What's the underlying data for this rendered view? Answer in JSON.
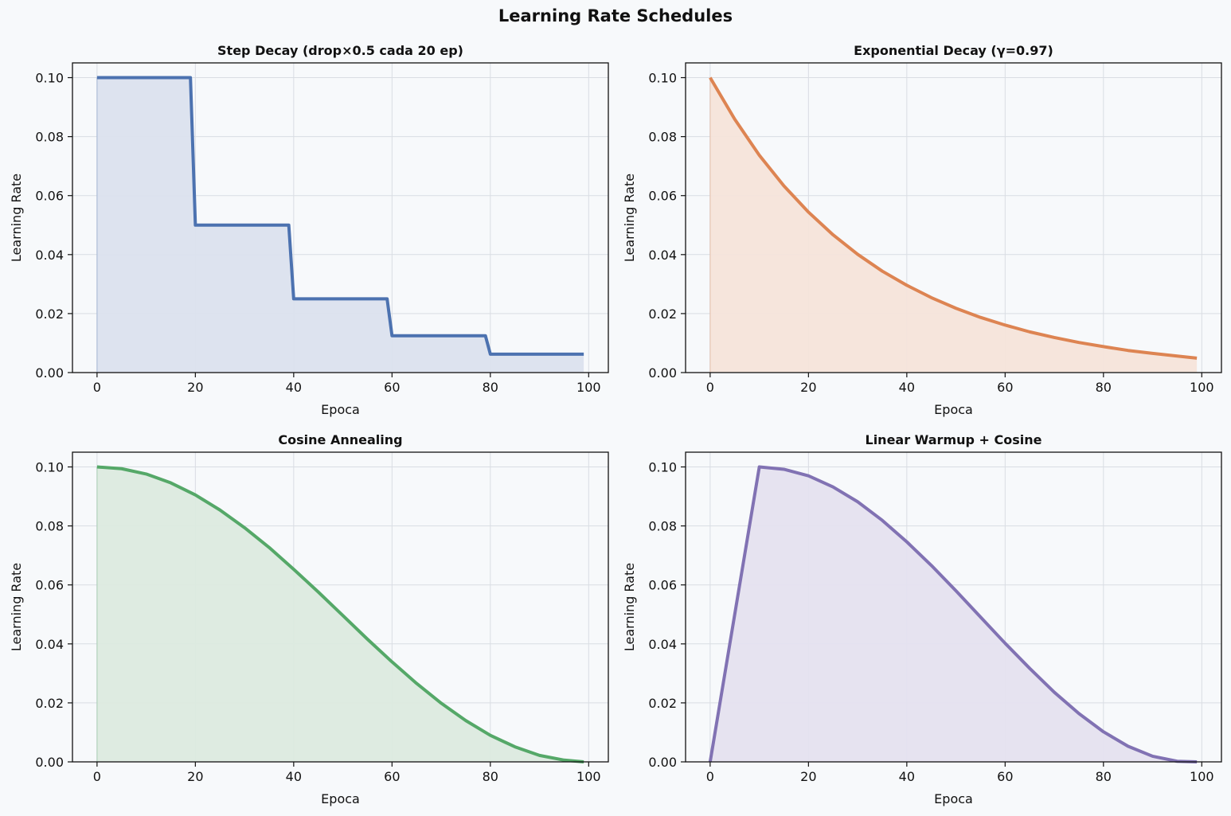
{
  "figure": {
    "title": "Learning Rate Schedules"
  },
  "chart_data": [
    {
      "type": "area",
      "title": "Step Decay (drop×0.5 cada 20 ep)",
      "xlabel": "Epoca",
      "ylabel": "Learning Rate",
      "xlim": [
        -5,
        104
      ],
      "ylim": [
        0,
        0.105
      ],
      "xticks": [
        "0",
        "20",
        "40",
        "60",
        "80",
        "100"
      ],
      "yticks": [
        "0.00",
        "0.02",
        "0.04",
        "0.06",
        "0.08",
        "0.10"
      ],
      "grid": true,
      "color": "#4c72b0",
      "fill_color": "#dbe2ee",
      "series": [
        {
          "x": [
            0,
            19,
            20,
            39,
            40,
            59,
            60,
            79,
            80,
            99
          ],
          "y": [
            0.1,
            0.1,
            0.05,
            0.05,
            0.025,
            0.025,
            0.0125,
            0.0125,
            0.00625,
            0.00625
          ]
        }
      ]
    },
    {
      "type": "area",
      "title": "Exponential Decay (γ=0.97)",
      "xlabel": "Epoca",
      "ylabel": "Learning Rate",
      "xlim": [
        -5,
        104
      ],
      "ylim": [
        0,
        0.105
      ],
      "xticks": [
        "0",
        "20",
        "40",
        "60",
        "80",
        "100"
      ],
      "yticks": [
        "0.00",
        "0.02",
        "0.04",
        "0.06",
        "0.08",
        "0.10"
      ],
      "grid": true,
      "color": "#dd8452",
      "fill_color": "#f5e4da",
      "series": [
        {
          "x": [
            0,
            5,
            10,
            15,
            20,
            25,
            30,
            35,
            40,
            45,
            50,
            55,
            60,
            65,
            70,
            75,
            80,
            85,
            90,
            95,
            99
          ],
          "y": [
            0.1,
            0.0859,
            0.0737,
            0.0633,
            0.0544,
            0.0467,
            0.0401,
            0.0344,
            0.0296,
            0.0254,
            0.0218,
            0.0187,
            0.0161,
            0.0138,
            0.0119,
            0.0102,
            0.0088,
            0.0075,
            0.0065,
            0.0056,
            0.0049
          ]
        }
      ]
    },
    {
      "type": "area",
      "title": "Cosine Annealing",
      "xlabel": "Epoca",
      "ylabel": "Learning Rate",
      "xlim": [
        -5,
        104
      ],
      "ylim": [
        0,
        0.105
      ],
      "xticks": [
        "0",
        "20",
        "40",
        "60",
        "80",
        "100"
      ],
      "yticks": [
        "0.00",
        "0.02",
        "0.04",
        "0.06",
        "0.08",
        "0.10"
      ],
      "grid": true,
      "color": "#55a868",
      "fill_color": "#dceadf",
      "series": [
        {
          "x": [
            0,
            5,
            10,
            15,
            20,
            25,
            30,
            35,
            40,
            45,
            50,
            55,
            60,
            65,
            70,
            75,
            80,
            85,
            90,
            95,
            99
          ],
          "y": [
            0.1,
            0.0994,
            0.0976,
            0.0946,
            0.0905,
            0.0854,
            0.0794,
            0.0727,
            0.0653,
            0.0576,
            0.0496,
            0.0416,
            0.0339,
            0.0266,
            0.0199,
            0.014,
            0.009,
            0.0051,
            0.0022,
            0.0006,
            0.0
          ]
        }
      ]
    },
    {
      "type": "area",
      "title": "Linear Warmup + Cosine",
      "xlabel": "Epoca",
      "ylabel": "Learning Rate",
      "xlim": [
        -5,
        104
      ],
      "ylim": [
        0,
        0.105
      ],
      "xticks": [
        "0",
        "20",
        "40",
        "60",
        "80",
        "100"
      ],
      "yticks": [
        "0.00",
        "0.02",
        "0.04",
        "0.06",
        "0.08",
        "0.10"
      ],
      "grid": true,
      "color": "#8172b3",
      "fill_color": "#e5e2ef",
      "series": [
        {
          "x": [
            0,
            10,
            15,
            20,
            25,
            30,
            35,
            40,
            45,
            50,
            55,
            60,
            65,
            70,
            75,
            80,
            85,
            90,
            95,
            99
          ],
          "y": [
            0.0,
            0.1,
            0.0992,
            0.097,
            0.0932,
            0.0882,
            0.0819,
            0.0746,
            0.0666,
            0.058,
            0.0491,
            0.0402,
            0.0317,
            0.0236,
            0.0164,
            0.0102,
            0.0053,
            0.0019,
            0.0002,
            0.0
          ]
        }
      ]
    }
  ]
}
